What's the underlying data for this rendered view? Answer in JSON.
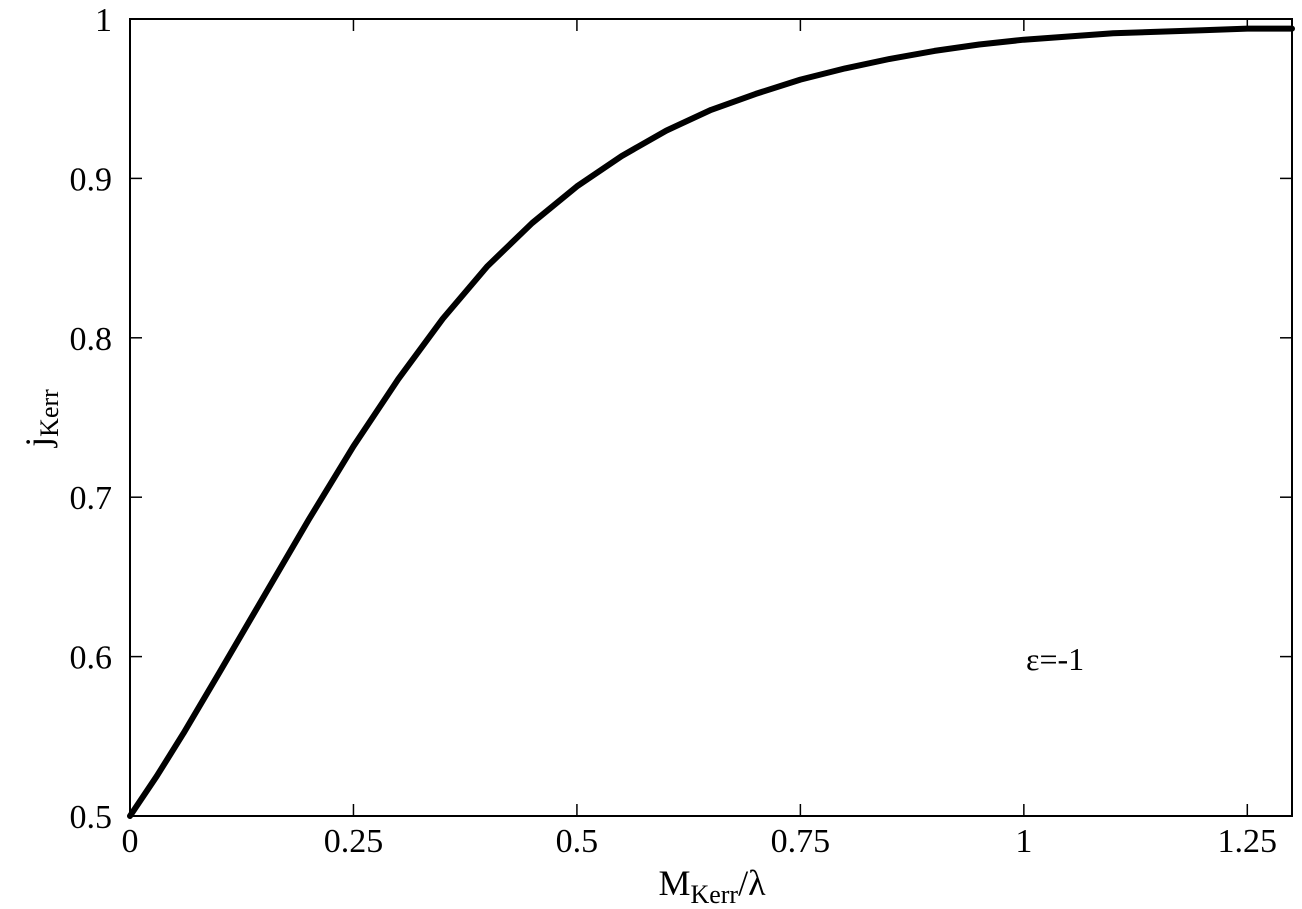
{
  "chart_data": {
    "type": "line",
    "title": "",
    "xlabel": {
      "main": "M",
      "sub": "Kerr",
      "suffix": "/λ"
    },
    "ylabel": {
      "main": "j",
      "sub": "Kerr"
    },
    "xlim": [
      0,
      1.3
    ],
    "ylim": [
      0.5,
      1.0
    ],
    "x_ticks": [
      0,
      0.25,
      0.5,
      0.75,
      1,
      1.25
    ],
    "x_tick_labels": [
      "0",
      "0.25",
      "0.5",
      "0.75",
      "1",
      "1.25"
    ],
    "y_ticks": [
      0.5,
      0.6,
      0.7,
      0.8,
      0.9,
      1.0
    ],
    "y_tick_labels": [
      "0.5",
      "0.6",
      "0.7",
      "0.8",
      "0.9",
      "1"
    ],
    "grid": false,
    "line_color": "#000000",
    "annotation": "ε=-1",
    "series": [
      {
        "x": [
          0,
          0.03,
          0.06,
          0.1,
          0.15,
          0.2,
          0.25,
          0.3,
          0.35,
          0.4,
          0.45,
          0.5,
          0.55,
          0.6,
          0.65,
          0.7,
          0.75,
          0.8,
          0.85,
          0.9,
          0.95,
          1.0,
          1.05,
          1.1,
          1.15,
          1.2,
          1.25,
          1.3
        ],
        "y": [
          0.5,
          0.525,
          0.552,
          0.59,
          0.638,
          0.686,
          0.732,
          0.774,
          0.812,
          0.845,
          0.872,
          0.895,
          0.914,
          0.93,
          0.943,
          0.953,
          0.962,
          0.969,
          0.975,
          0.98,
          0.984,
          0.987,
          0.989,
          0.991,
          0.992,
          0.993,
          0.994,
          0.994
        ]
      }
    ]
  }
}
